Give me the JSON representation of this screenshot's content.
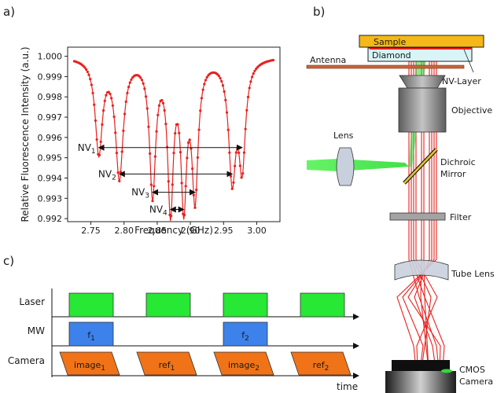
{
  "panels": {
    "a": "a)",
    "b": "b)",
    "c": "c)"
  },
  "chart_data": {
    "type": "line",
    "xlabel": "Frequency (GHz)",
    "ylabel": "Relative Fluorescence Intensity (a.u.)",
    "xlim": [
      2.715,
      3.035
    ],
    "ylim": [
      0.99185,
      1.00045
    ],
    "xticks": [
      "2.75",
      "2.80",
      "2.85",
      "2.90",
      "2.95",
      "3.00"
    ],
    "yticks": [
      "0.992",
      "0.993",
      "0.994",
      "0.995",
      "0.996",
      "0.997",
      "0.998",
      "0.999",
      "1.000"
    ],
    "color": "#e8211f",
    "baseline": 1.0,
    "dips": [
      {
        "f": 2.762,
        "depth": 0.0046,
        "width": 0.0065
      },
      {
        "f": 2.793,
        "depth": 0.0058,
        "width": 0.007
      },
      {
        "f": 2.843,
        "depth": 0.0066,
        "width": 0.0055
      },
      {
        "f": 2.87,
        "depth": 0.0072,
        "width": 0.005
      },
      {
        "f": 2.89,
        "depth": 0.0068,
        "width": 0.005
      },
      {
        "f": 2.907,
        "depth": 0.0066,
        "width": 0.0055
      },
      {
        "f": 2.963,
        "depth": 0.0057,
        "width": 0.0065
      },
      {
        "f": 2.978,
        "depth": 0.005,
        "width": 0.006
      }
    ],
    "pairs": [
      {
        "label": "NV",
        "sub": "1",
        "f1": 2.762,
        "f2": 2.978,
        "y": 0.9955
      },
      {
        "label": "NV",
        "sub": "2",
        "f1": 2.793,
        "f2": 2.963,
        "y": 0.9942
      },
      {
        "label": "NV",
        "sub": "3",
        "f1": 2.843,
        "f2": 2.907,
        "y": 0.9933
      },
      {
        "label": "NV",
        "sub": "4",
        "f1": 2.87,
        "f2": 2.89,
        "y": 0.99245
      }
    ]
  },
  "setup": {
    "sample": "Sample",
    "diamond": "Diamond",
    "antenna": "Antenna",
    "nv_layer": "NV-Layer",
    "objective": "Objective",
    "lens": "Lens",
    "dichroic_1": "Dichroic",
    "dichroic_2": "Mirror",
    "filter": "Filter",
    "tube_lens": "Tube Lens",
    "camera_1": "CMOS",
    "camera_2": "Camera"
  },
  "timing": {
    "rows": [
      "Laser",
      "MW",
      "Camera"
    ],
    "time_label": "time",
    "laser_pulses": 4,
    "mw_pulses": [
      {
        "text": "f",
        "sub": "1"
      },
      {
        "text": "f",
        "sub": "2"
      }
    ],
    "camera_frames": [
      {
        "text": "image",
        "sub": "1"
      },
      {
        "text": "ref",
        "sub": "1"
      },
      {
        "text": "image",
        "sub": "2"
      },
      {
        "text": "ref",
        "sub": "2"
      }
    ],
    "colors": {
      "laser": "#27e834",
      "mw": "#3d82ea",
      "camera": "#f07318"
    }
  }
}
